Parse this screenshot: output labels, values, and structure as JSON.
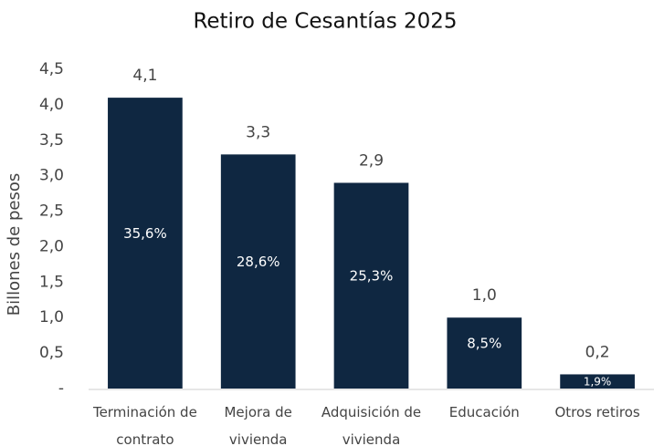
{
  "chart_data": {
    "type": "bar",
    "title": "Retiro de Cesantías 2025",
    "y_label": "Billones de pesos",
    "categories": [
      "Terminación de contrato",
      "Mejora de vivienda",
      "Adquisición de vivienda",
      "Educación",
      "Otros retiros"
    ],
    "values": [
      4.1,
      3.3,
      2.9,
      1.0,
      0.2
    ],
    "value_labels": [
      "4,1",
      "3,3",
      "2,9",
      "1,0",
      "0,2"
    ],
    "shares": [
      35.6,
      28.6,
      25.3,
      8.5,
      1.9
    ],
    "share_labels": [
      "35,6%",
      "28,6%",
      "25,3%",
      "8,5%",
      "1,9%"
    ],
    "color": "#0f2741",
    "ylim": [
      0,
      4.5
    ],
    "yticks": [
      {
        "value": 0,
        "label": "-"
      },
      {
        "value": 0.5,
        "label": "0,5"
      },
      {
        "value": 1.0,
        "label": "1,0"
      },
      {
        "value": 1.5,
        "label": "1,5"
      },
      {
        "value": 2.0,
        "label": "2,0"
      },
      {
        "value": 2.5,
        "label": "2,5"
      },
      {
        "value": 3.0,
        "label": "3,0"
      },
      {
        "value": 3.5,
        "label": "3,5"
      },
      {
        "value": 4.0,
        "label": "4,0"
      },
      {
        "value": 4.5,
        "label": "4,5"
      }
    ],
    "grid": false
  }
}
